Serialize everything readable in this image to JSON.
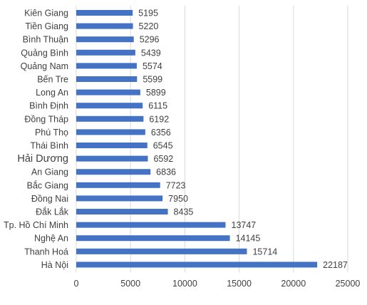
{
  "chart_data": {
    "type": "bar",
    "orientation": "horizontal",
    "title": "",
    "xlabel": "",
    "ylabel": "",
    "categories": [
      "Kiên Giang",
      "Tiền Giang",
      "Bình Thuận",
      "Quảng Bình",
      "Quảng Nam",
      "Bến Tre",
      "Long An",
      "Bình Định",
      "Đồng Tháp",
      "Phú Thọ",
      "Thái Bình",
      "Hải Dương",
      "An Giang",
      "Bắc Giang",
      "Đồng Nai",
      "Đắk Lắk",
      "Tp. Hồ Chí Minh",
      "Nghệ An",
      "Thanh Hoá",
      "Hà Nội"
    ],
    "values": [
      5195,
      5220,
      5296,
      5439,
      5574,
      5599,
      5899,
      6115,
      6192,
      6356,
      6545,
      6592,
      6836,
      7723,
      7950,
      8435,
      13747,
      14145,
      15714,
      22187
    ],
    "value_labels": [
      "5195",
      "5220",
      "5296",
      "5439",
      "5574",
      "5599",
      "5899",
      "6115",
      "6192",
      "6356",
      "6545",
      "6592",
      "6836",
      "7723",
      "7950",
      "8435",
      "13747",
      "14145",
      "15714",
      "22187"
    ],
    "xlim": [
      0,
      25000
    ],
    "x_ticks": [
      0,
      5000,
      10000,
      15000,
      20000,
      25000
    ],
    "x_tick_labels": [
      "0",
      "5000",
      "10000",
      "15000",
      "20000",
      "25000"
    ],
    "grid": "vertical",
    "legend": "none",
    "bar_color": "#4472c4",
    "emphasized_category": "Hải Dương"
  }
}
